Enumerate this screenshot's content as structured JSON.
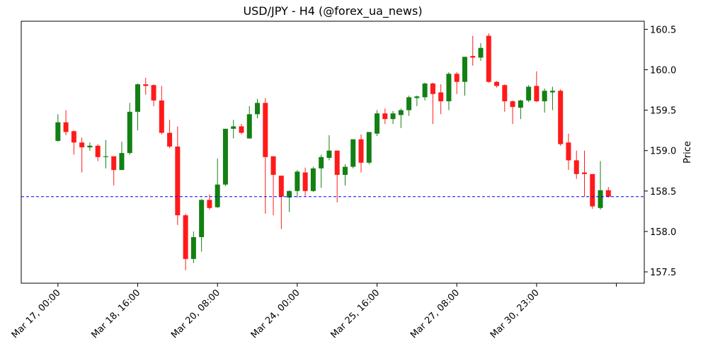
{
  "chart_data": {
    "type": "candlestick",
    "title": "USD/JPY - H4 (@forex_ua_news)",
    "ylabel": "Price",
    "up_color": "#138013",
    "down_color": "#ff1a1a",
    "hline": {
      "value": 158.43,
      "color": "#0000ff",
      "style": "dashed"
    },
    "xlim": [
      -4.6,
      73.5
    ],
    "xticks": [
      {
        "value": 0,
        "label": "Mar 17, 00:00"
      },
      {
        "value": 10,
        "label": "Mar 18, 16:00"
      },
      {
        "value": 20,
        "label": "Mar 20, 08:00"
      },
      {
        "value": 30,
        "label": "Mar 24, 00:00"
      },
      {
        "value": 40,
        "label": "Mar 25, 16:00"
      },
      {
        "value": 50,
        "label": "Mar 27, 08:00"
      },
      {
        "value": 60,
        "label": "Mar 30, 23:00"
      },
      {
        "value": 70,
        "label": null
      }
    ],
    "ylim": [
      157.36,
      160.6
    ],
    "yticks": [
      {
        "value": 157.5,
        "label": "157.5"
      },
      {
        "value": 158,
        "label": "158.0"
      },
      158.5,
      {
        "value": 159,
        "label": "159.0"
      },
      159.5,
      {
        "value": 160,
        "label": "160.0"
      },
      160.5
    ],
    "open": [
      159.12,
      159.35,
      159.24,
      159.1,
      159.04,
      159.06,
      158.92,
      158.93,
      158.76,
      158.97,
      159.48,
      159.82,
      159.81,
      159.62,
      159.22,
      159.05,
      158.2,
      157.66,
      157.93,
      158.39,
      158.3,
      158.58,
      159.27,
      159.3,
      159.15,
      159.45,
      159.59,
      158.93,
      158.69,
      158.42,
      158.5,
      158.73,
      158.5,
      158.78,
      158.91,
      159.0,
      158.7,
      158.8,
      159.14,
      158.85,
      159.21,
      159.46,
      159.39,
      159.44,
      159.5,
      159.65,
      159.66,
      159.83,
      159.72,
      159.61,
      159.95,
      159.85,
      160.17,
      160.15,
      160.42,
      159.85,
      159.81,
      159.61,
      159.53,
      159.62,
      159.8,
      159.61,
      159.72,
      159.74,
      159.1,
      158.88,
      158.73,
      158.71,
      158.29,
      158.51
    ],
    "high": [
      159.45,
      159.5,
      159.25,
      159.16,
      159.1,
      159.08,
      159.13,
      158.93,
      159.11,
      159.59,
      159.83,
      159.9,
      159.82,
      159.8,
      159.38,
      159.3,
      158.22,
      158.0,
      158.4,
      158.46,
      158.9,
      159.27,
      159.38,
      159.33,
      159.55,
      159.64,
      159.65,
      158.93,
      158.69,
      158.51,
      158.76,
      158.79,
      158.8,
      158.95,
      159.19,
      159.0,
      158.83,
      159.14,
      159.2,
      159.23,
      159.5,
      159.52,
      159.49,
      159.52,
      159.68,
      159.68,
      159.84,
      159.84,
      159.82,
      159.97,
      159.97,
      160.16,
      160.42,
      160.33,
      160.45,
      159.86,
      159.82,
      159.62,
      159.63,
      159.81,
      159.98,
      159.77,
      159.79,
      159.76,
      159.21,
      159.0,
      159.0,
      158.71,
      158.87,
      158.55
    ],
    "low": [
      159.11,
      159.19,
      158.95,
      158.73,
      159.0,
      158.87,
      158.78,
      158.57,
      158.76,
      158.95,
      159.25,
      159.69,
      159.55,
      159.2,
      159.03,
      158.08,
      157.52,
      157.61,
      157.75,
      158.27,
      158.29,
      158.56,
      159.15,
      159.2,
      159.15,
      159.4,
      158.22,
      158.2,
      158.03,
      158.24,
      158.42,
      158.44,
      158.49,
      158.54,
      158.88,
      158.36,
      158.57,
      158.78,
      158.73,
      158.83,
      159.18,
      159.33,
      159.33,
      159.28,
      159.43,
      159.55,
      159.62,
      159.33,
      159.45,
      159.5,
      159.7,
      159.68,
      160.05,
      160.11,
      159.84,
      159.78,
      159.48,
      159.33,
      159.39,
      159.6,
      159.6,
      159.47,
      159.5,
      159.06,
      158.76,
      158.65,
      158.43,
      158.28,
      158.27,
      158.42
    ],
    "close": [
      159.35,
      159.23,
      159.1,
      159.04,
      159.06,
      158.92,
      158.93,
      158.76,
      158.97,
      159.48,
      159.82,
      159.8,
      159.62,
      159.22,
      159.05,
      158.2,
      157.66,
      157.93,
      158.39,
      158.29,
      158.58,
      159.27,
      159.3,
      159.22,
      159.45,
      159.59,
      158.92,
      158.7,
      158.43,
      158.5,
      158.74,
      158.5,
      158.78,
      158.92,
      159.0,
      158.7,
      158.8,
      159.14,
      158.85,
      159.23,
      159.46,
      159.39,
      159.46,
      159.5,
      159.66,
      159.67,
      159.83,
      159.7,
      159.61,
      159.95,
      159.85,
      160.16,
      160.15,
      160.27,
      159.85,
      159.8,
      159.61,
      159.54,
      159.62,
      159.79,
      159.61,
      159.74,
      159.74,
      159.08,
      158.88,
      158.71,
      158.71,
      158.31,
      158.51,
      158.43
    ]
  }
}
